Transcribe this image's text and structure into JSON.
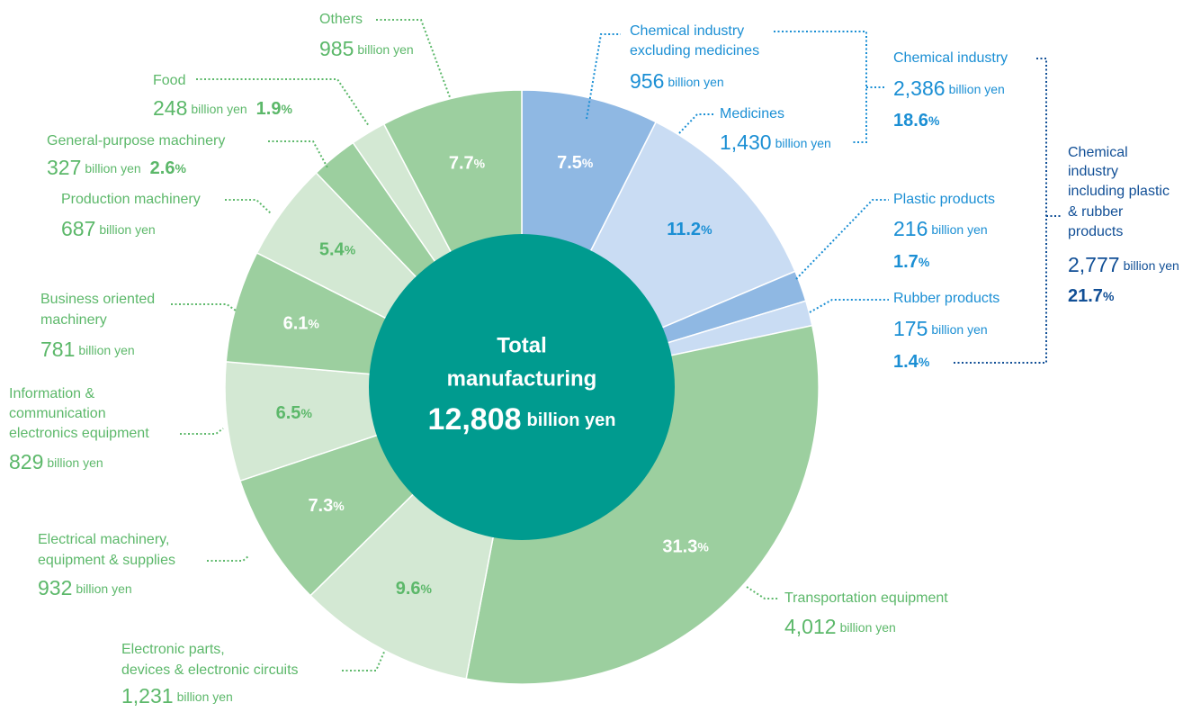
{
  "chart_data": {
    "type": "pie",
    "donut": true,
    "center": {
      "lines": [
        "Total",
        "manufacturing"
      ],
      "value": 12808,
      "value_label": "12,808"
    },
    "unit": "billion yen",
    "percent_unit": "%",
    "labels": [
      [
        "Chemical industry",
        "excluding medicines"
      ],
      [
        "Medicines"
      ],
      [
        "Plastic products"
      ],
      [
        "Rubber products"
      ],
      [
        "Transportation equipment"
      ],
      [
        "Electronic parts,",
        "devices & electronic circuits"
      ],
      [
        "Electrical machinery,",
        "equipment & supplies"
      ],
      [
        "Information &",
        "communication",
        "electronics equipment"
      ],
      [
        "Business oriented",
        "machinery"
      ],
      [
        "Production machinery"
      ],
      [
        "General-purpose machinery"
      ],
      [
        "Food"
      ],
      [
        "Others"
      ]
    ],
    "values": [
      956,
      1430,
      216,
      175,
      4012,
      1231,
      932,
      829,
      781,
      687,
      327,
      248,
      985
    ],
    "value_labels": [
      "956",
      "1,430",
      "216",
      "175",
      "4,012",
      "1,231",
      "932",
      "829",
      "781",
      "687",
      "327",
      "248",
      "985"
    ],
    "percents": [
      7.5,
      11.2,
      1.7,
      1.4,
      31.3,
      9.6,
      7.3,
      6.5,
      6.1,
      5.4,
      2.6,
      1.9,
      7.7
    ],
    "colors": [
      "#8fb8e3",
      "#c9dcf3",
      "#8fb8e3",
      "#c9dcf3",
      "#9ccf9f",
      "#d3e8d3",
      "#9ccf9f",
      "#d3e8d3",
      "#9ccf9f",
      "#d3e8d3",
      "#9ccf9f",
      "#d3e8d3",
      "#9ccf9f"
    ],
    "center_color": "#009b8f",
    "groups": [
      {
        "lines": [
          "Chemical industry"
        ],
        "value": 2386,
        "value_label": "2,386",
        "percent": 18.6
      },
      {
        "lines": [
          "Chemical",
          "industry",
          "including plastic",
          "& rubber",
          "products"
        ],
        "value": 2777,
        "value_label": "2,777",
        "percent": 21.7
      }
    ]
  }
}
